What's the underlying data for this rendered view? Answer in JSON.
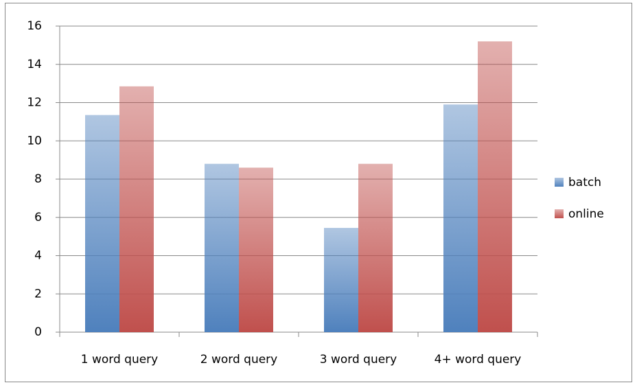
{
  "chart_data": {
    "type": "bar",
    "categories": [
      "1 word query",
      "2 word query",
      "3 word query",
      "4+ word query"
    ],
    "series": [
      {
        "name": "batch",
        "color": "#4f81bd",
        "values": [
          11.35,
          8.8,
          5.45,
          11.9
        ]
      },
      {
        "name": "online",
        "color": "#c0504d",
        "values": [
          12.85,
          8.6,
          8.8,
          15.2
        ]
      }
    ],
    "ylim": [
      0,
      16
    ],
    "yticks": [
      0,
      2,
      4,
      6,
      8,
      10,
      12,
      14,
      16
    ],
    "grid": true,
    "legend": "right"
  }
}
